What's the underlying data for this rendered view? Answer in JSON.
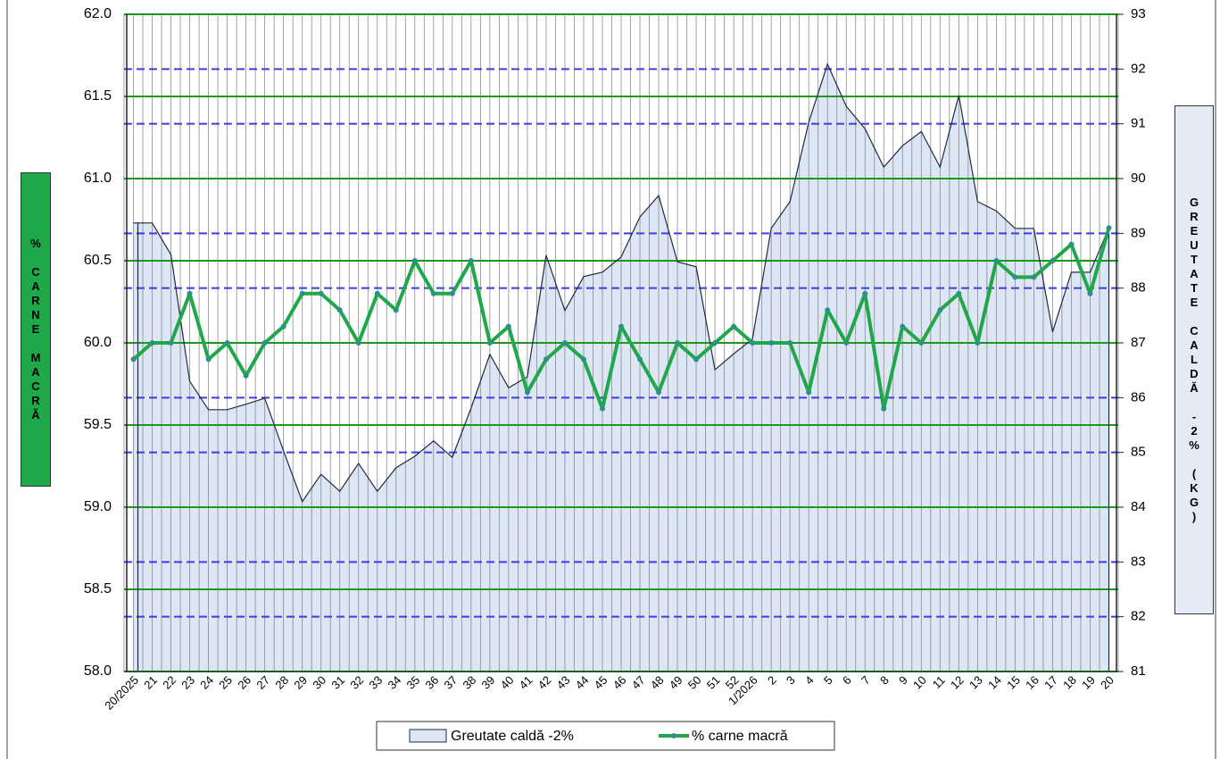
{
  "chart_data": {
    "type": "line",
    "y_label": "% CARNE MACRĂ",
    "y2_label": "GREUTATE CALDĂ -2% (KG)",
    "categories": [
      "20/2025",
      "21",
      "22",
      "23",
      "24",
      "25",
      "26",
      "27",
      "28",
      "29",
      "30",
      "31",
      "32",
      "33",
      "34",
      "35",
      "36",
      "37",
      "38",
      "39",
      "40",
      "41",
      "42",
      "43",
      "44",
      "45",
      "46",
      "47",
      "48",
      "49",
      "50",
      "51",
      "52",
      "1/2026",
      "2",
      "3",
      "4",
      "5",
      "6",
      "7",
      "8",
      "9",
      "10",
      "11",
      "12",
      "13",
      "14",
      "15",
      "16",
      "17",
      "18",
      "19",
      "20"
    ],
    "series": [
      {
        "name": "Greutate caldă -2%",
        "type": "area",
        "axis": "y2",
        "color": "#dde6f4",
        "line_color": "#1f2a44",
        "values": [
          89.19,
          89.19,
          88.61,
          86.3,
          85.78,
          85.78,
          85.88,
          85.99,
          85.03,
          84.1,
          84.6,
          84.29,
          84.8,
          84.29,
          84.72,
          84.93,
          85.21,
          84.91,
          85.81,
          86.79,
          86.18,
          86.38,
          88.6,
          87.59,
          88.21,
          88.29,
          88.57,
          89.3,
          89.69,
          88.48,
          88.39,
          86.51,
          86.8,
          87.07,
          89.09,
          89.58,
          91.03,
          92.09,
          91.32,
          90.91,
          90.21,
          90.6,
          90.86,
          90.21,
          91.52,
          89.58,
          89.41,
          89.09,
          89.09,
          87.2,
          88.29,
          88.29,
          89.1
        ]
      },
      {
        "name": "% carne macră",
        "type": "line",
        "color": "#1fa84a",
        "marker_color": "#2f8f8a",
        "values": [
          59.9,
          60.0,
          60.0,
          60.3,
          59.9,
          60.0,
          59.8,
          60.0,
          60.1,
          60.3,
          60.3,
          60.2,
          60.0,
          60.3,
          60.2,
          60.5,
          60.3,
          60.3,
          60.5,
          60.0,
          60.1,
          59.7,
          59.9,
          60.0,
          59.9,
          59.6,
          60.1,
          59.9,
          59.7,
          60.0,
          59.9,
          60.0,
          60.1,
          60.0,
          60.0,
          60.0,
          59.7,
          60.2,
          60.0,
          60.3,
          59.6,
          60.1,
          60.0,
          60.2,
          60.3,
          60.0,
          60.5,
          60.4,
          60.4,
          60.5,
          60.6,
          60.3,
          60.7
        ]
      }
    ],
    "ylim": [
      58,
      62
    ],
    "yticks": [
      {
        "value": 58,
        "label": "58.0"
      },
      58.5,
      {
        "value": 59,
        "label": "59.0"
      },
      59.5,
      {
        "value": 60,
        "label": "60.0"
      },
      60.5,
      {
        "value": 61,
        "label": "61.0"
      },
      61.5,
      {
        "value": 62,
        "label": "62.0"
      }
    ],
    "y2lim": [
      81,
      93
    ],
    "y2ticks": [
      81,
      82,
      83,
      84,
      85,
      86,
      87,
      88,
      89,
      90,
      91,
      92,
      93
    ],
    "grid": true,
    "grid_color": "#1a9a1a",
    "y2_grid_color": "#3b3bef",
    "legend": "bottom"
  }
}
